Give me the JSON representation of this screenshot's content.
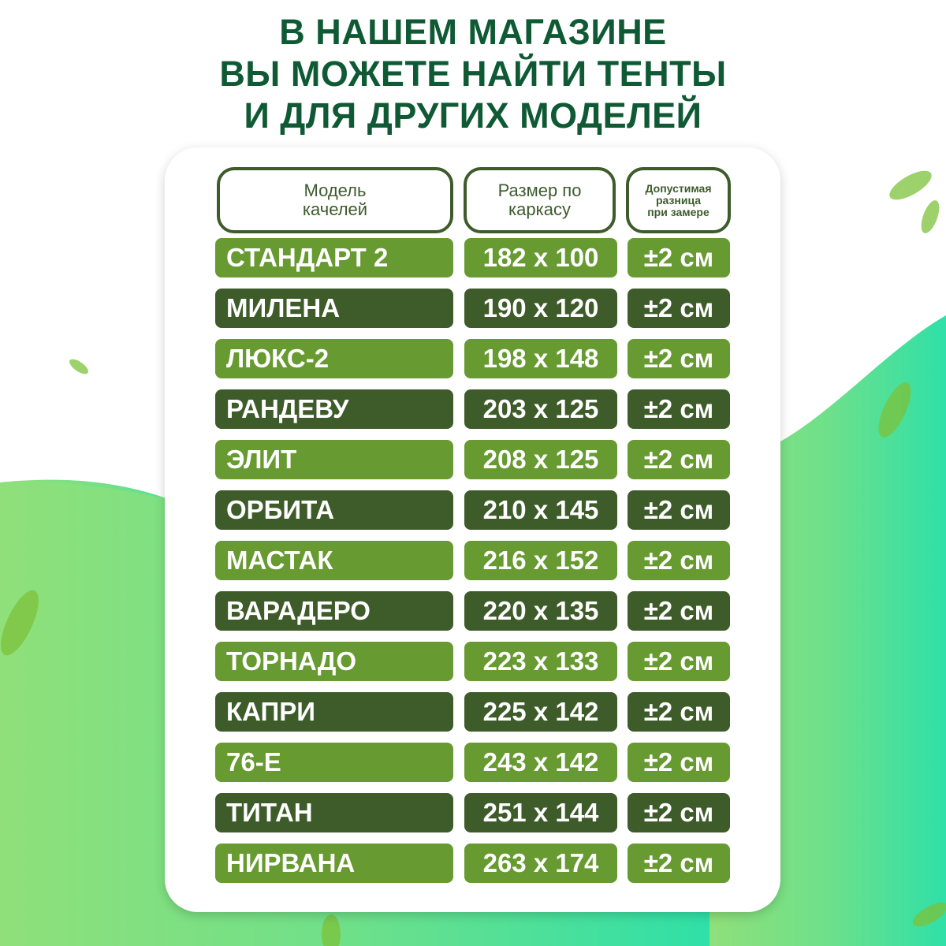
{
  "title": {
    "lines": [
      "В НАШЕМ МАГАЗИНЕ",
      "ВЫ МОЖЕТЕ НАЙТИ ТЕНТЫ",
      "И ДЛЯ ДРУГИХ МОДЕЛЕЙ"
    ]
  },
  "colors": {
    "title": "#0f5a34",
    "light_row": "#679a30",
    "dark_row": "#3e5b2a",
    "header_border": "#3d5b2b",
    "bg_green": "#8fe07a",
    "bg_teal": "#2fe0a8"
  },
  "table": {
    "headers": [
      {
        "lines": [
          "Модель",
          "качелей"
        ]
      },
      {
        "lines": [
          "Размер по",
          "каркасу"
        ]
      },
      {
        "lines": [
          "Допустимая",
          "разница",
          "при замере"
        ]
      }
    ],
    "rows": [
      {
        "model": "СТАНДАРТ 2",
        "size": "182 x 100",
        "tolerance": "±2 см"
      },
      {
        "model": "МИЛЕНА",
        "size": "190 x 120",
        "tolerance": "±2 см"
      },
      {
        "model": "ЛЮКС-2",
        "size": "198 x 148",
        "tolerance": "±2 см"
      },
      {
        "model": "РАНДЕВУ",
        "size": "203 x 125",
        "tolerance": "±2 см"
      },
      {
        "model": "ЭЛИТ",
        "size": "208 x 125",
        "tolerance": "±2 см"
      },
      {
        "model": "ОРБИТА",
        "size": "210 x 145",
        "tolerance": "±2 см"
      },
      {
        "model": "МАСТАК",
        "size": "216 x 152",
        "tolerance": "±2 см"
      },
      {
        "model": "ВАРАДЕРО",
        "size": "220 x 135",
        "tolerance": "±2 см"
      },
      {
        "model": "ТОРНАДО",
        "size": "223 x 133",
        "tolerance": "±2 см"
      },
      {
        "model": "КАПРИ",
        "size": "225 x 142",
        "tolerance": "±2 см"
      },
      {
        "model": "76-Е",
        "size": "243 x 142",
        "tolerance": "±2 см"
      },
      {
        "model": "ТИТАН",
        "size": "251 x 144",
        "tolerance": "±2 см"
      },
      {
        "model": "НИРВАНА",
        "size": "263 x 174",
        "tolerance": "±2 см"
      }
    ]
  }
}
